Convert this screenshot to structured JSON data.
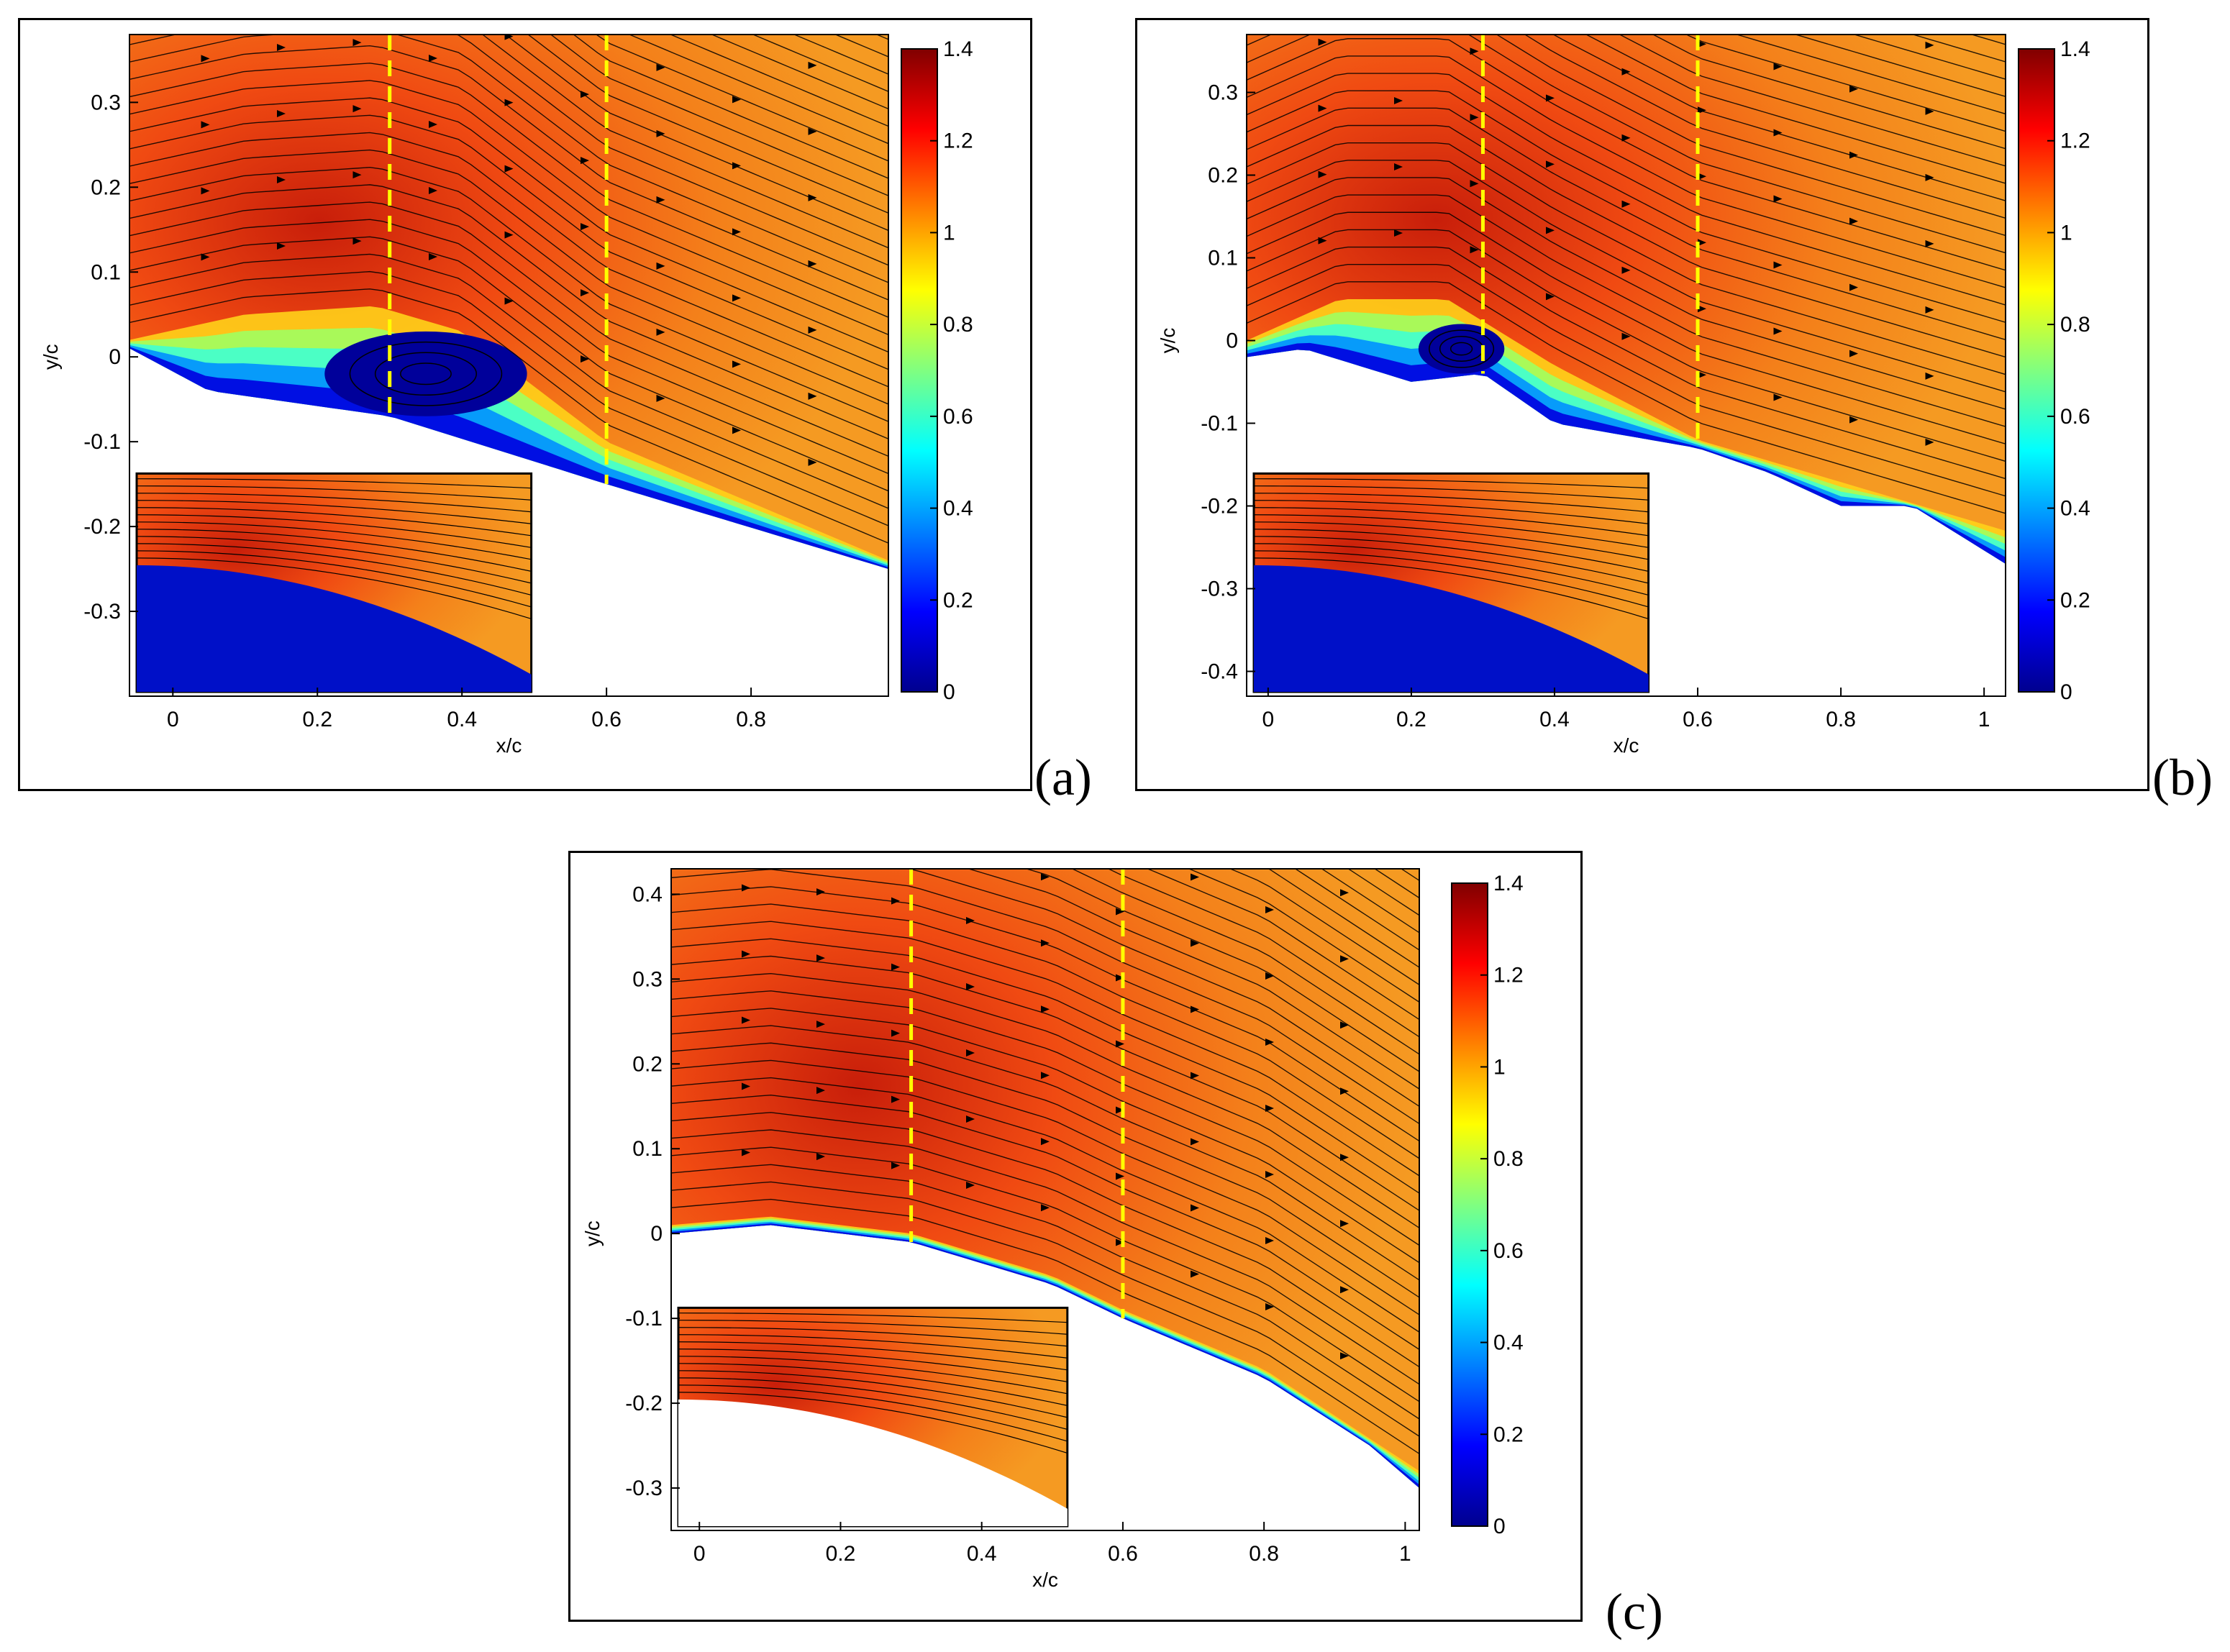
{
  "colormap": {
    "stops": [
      "#00008f",
      "#0000ff",
      "#0080ff",
      "#00ffff",
      "#80ff80",
      "#ffff00",
      "#ff8000",
      "#ff0000",
      "#800000"
    ],
    "guide_line_color": "#ffff00",
    "streamline_color": "#000000"
  },
  "chart_data": [
    {
      "type": "heatmap",
      "panel_label": "(a)",
      "xlabel": "x/c",
      "ylabel": "y/c",
      "xlim": [
        -0.06,
        0.99
      ],
      "ylim": [
        -0.4,
        0.38
      ],
      "xticks": [
        0,
        0.2,
        0.4,
        0.6,
        0.8
      ],
      "xtick_labels": [
        "0",
        "0.2",
        "0.4",
        "0.6",
        "0.8"
      ],
      "yticks": [
        -0.3,
        -0.2,
        -0.1,
        0,
        0.1,
        0.2,
        0.3
      ],
      "ytick_labels": [
        "-0.3",
        "-0.2",
        "-0.1",
        "0",
        "0.1",
        "0.2",
        "0.3"
      ],
      "guide_lines_x": [
        0.3,
        0.6
      ],
      "colorbar": {
        "min": 0,
        "max": 1.4,
        "ticks": [
          0,
          0.2,
          0.4,
          0.6,
          0.8,
          1,
          1.2,
          1.4
        ],
        "tick_labels": [
          "0",
          "0.2",
          "0.4",
          "0.6",
          "0.8",
          "1",
          "1.2",
          "1.4"
        ]
      },
      "surface": [
        [
          -0.06,
          0.01
        ],
        [
          0.05,
          -0.04
        ],
        [
          0.3,
          -0.07
        ],
        [
          0.6,
          -0.15
        ],
        [
          0.99,
          -0.25
        ]
      ],
      "shear_layer_top": [
        [
          -0.06,
          0.02
        ],
        [
          0.1,
          0.05
        ],
        [
          0.28,
          0.06
        ],
        [
          0.4,
          0.03
        ],
        [
          0.6,
          -0.1
        ],
        [
          0.99,
          -0.24
        ]
      ],
      "bubble": {
        "center": [
          0.35,
          -0.02
        ],
        "rx": 0.14,
        "ry": 0.05
      },
      "inset": {
        "note": "zoom of separation region"
      }
    },
    {
      "type": "heatmap",
      "panel_label": "(b)",
      "xlabel": "x/c",
      "ylabel": "y/c",
      "xlim": [
        -0.03,
        1.03
      ],
      "ylim": [
        -0.43,
        0.37
      ],
      "xticks": [
        0,
        0.2,
        0.4,
        0.6,
        0.8,
        1
      ],
      "xtick_labels": [
        "0",
        "0.2",
        "0.4",
        "0.6",
        "0.8",
        "1"
      ],
      "yticks": [
        -0.4,
        -0.3,
        -0.2,
        -0.1,
        0,
        0.1,
        0.2,
        0.3
      ],
      "ytick_labels": [
        "-0.4",
        "-0.3",
        "-0.2",
        "-0.1",
        "0",
        "0.1",
        "0.2",
        "0.3"
      ],
      "guide_lines_x": [
        0.3,
        0.6
      ],
      "colorbar": {
        "min": 0,
        "max": 1.4,
        "ticks": [
          0,
          0.2,
          0.4,
          0.6,
          0.8,
          1,
          1.2,
          1.4
        ],
        "tick_labels": [
          "0",
          "0.2",
          "0.4",
          "0.6",
          "0.8",
          "1",
          "1.2",
          "1.4"
        ]
      },
      "surface": [
        [
          -0.03,
          -0.02
        ],
        [
          0.05,
          -0.01
        ],
        [
          0.2,
          -0.05
        ],
        [
          0.3,
          -0.04
        ],
        [
          0.4,
          -0.1
        ],
        [
          0.6,
          -0.13
        ],
        [
          0.7,
          -0.16
        ],
        [
          0.8,
          -0.2
        ],
        [
          0.9,
          -0.2
        ],
        [
          1.03,
          -0.27
        ]
      ],
      "shear_layer_top": [
        [
          -0.03,
          0.0
        ],
        [
          0.1,
          0.05
        ],
        [
          0.25,
          0.05
        ],
        [
          0.4,
          -0.03
        ],
        [
          0.6,
          -0.12
        ],
        [
          1.03,
          -0.23
        ]
      ],
      "bubble": {
        "center": [
          0.27,
          -0.01
        ],
        "rx": 0.06,
        "ry": 0.03
      },
      "inset": {
        "note": "zoom of separation region"
      }
    },
    {
      "type": "heatmap",
      "panel_label": "(c)",
      "xlabel": "x/c",
      "ylabel": "y/c",
      "xlim": [
        -0.04,
        1.02
      ],
      "ylim": [
        -0.35,
        0.43
      ],
      "xticks": [
        0,
        0.2,
        0.4,
        0.6,
        0.8,
        1
      ],
      "xtick_labels": [
        "0",
        "0.2",
        "0.4",
        "0.6",
        "0.8",
        "1"
      ],
      "yticks": [
        -0.3,
        -0.2,
        -0.1,
        0,
        0.1,
        0.2,
        0.3,
        0.4
      ],
      "ytick_labels": [
        "-0.3",
        "-0.2",
        "-0.1",
        "0",
        "0.1",
        "0.2",
        "0.3",
        "0.4"
      ],
      "guide_lines_x": [
        0.3,
        0.6
      ],
      "colorbar": {
        "min": 0,
        "max": 1.4,
        "ticks": [
          0,
          0.2,
          0.4,
          0.6,
          0.8,
          1,
          1.2,
          1.4
        ],
        "tick_labels": [
          "0",
          "0.2",
          "0.4",
          "0.6",
          "0.8",
          "1",
          "1.2",
          "1.4"
        ]
      },
      "surface": [
        [
          -0.04,
          0.0
        ],
        [
          0.1,
          0.01
        ],
        [
          0.3,
          -0.01
        ],
        [
          0.5,
          -0.06
        ],
        [
          0.6,
          -0.1
        ],
        [
          0.8,
          -0.17
        ],
        [
          0.95,
          -0.25
        ],
        [
          1.02,
          -0.3
        ]
      ],
      "shear_layer_top": [
        [
          -0.04,
          0.01
        ],
        [
          0.1,
          0.02
        ],
        [
          0.3,
          0.0
        ],
        [
          0.5,
          -0.05
        ],
        [
          0.6,
          -0.09
        ],
        [
          0.8,
          -0.16
        ],
        [
          1.02,
          -0.28
        ]
      ],
      "bubble": null,
      "inset": {
        "note": "zoom of leading-edge region"
      }
    }
  ]
}
